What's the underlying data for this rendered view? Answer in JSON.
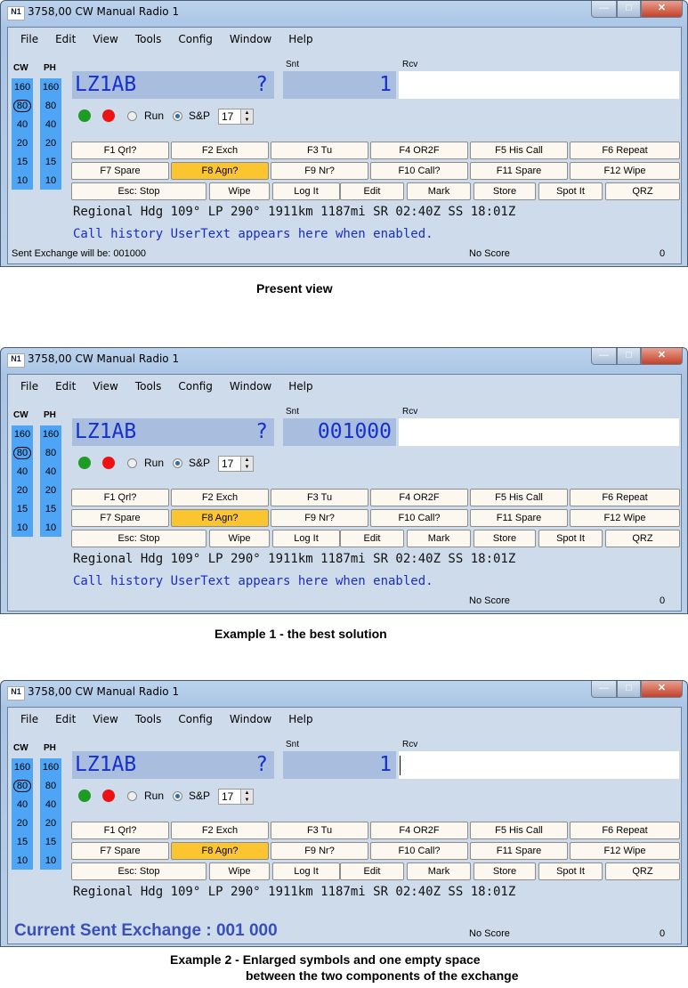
{
  "windows": [
    {
      "title": "3758,00 CW Manual Radio 1",
      "call": "LZ1AB",
      "call_flag": "?",
      "snt": "1",
      "rcv": "",
      "status": "Sent Exchange will be: 001000",
      "history": "Call history UserText appears here when enabled.",
      "big_status": "",
      "cursor": false,
      "caption": "Present view"
    },
    {
      "title": "3758,00 CW Manual Radio 1",
      "call": "LZ1AB",
      "call_flag": "?",
      "snt": "001000",
      "rcv": "",
      "status": "",
      "history": "Call history UserText appears here when enabled.",
      "big_status": "",
      "cursor": false,
      "caption": "Example 1 - the best solution"
    },
    {
      "title": "3758,00 CW Manual Radio 1",
      "call": "LZ1AB",
      "call_flag": "?",
      "snt": "1",
      "rcv": "",
      "status": "",
      "history": "",
      "big_status": "Current Sent Exchange :  001 000",
      "cursor": true,
      "caption": "Example 2 - Enlarged symbols and one empty space",
      "caption2": "between the two components of the exchange"
    }
  ],
  "common": {
    "logo": "N1MM",
    "controls": {
      "minimize": "—",
      "maximize": "□",
      "close": "✕"
    },
    "menu": [
      "File",
      "Edit",
      "View",
      "Tools",
      "Config",
      "Window",
      "Help"
    ],
    "band_headers": [
      "CW",
      "PH"
    ],
    "bands": [
      "160",
      "80",
      "40",
      "20",
      "15",
      "10"
    ],
    "selected_band": "80",
    "snt_label": "Snt",
    "rcv_label": "Rcv",
    "indicator_colors": {
      "green": "#1e9b22",
      "red": "#ee1111"
    },
    "run_label": "Run",
    "sp_label": "S&P",
    "mode": "S&P",
    "spin_value": "17",
    "fkeys_row1": [
      "F1 Qrl?",
      "F2 Exch",
      "F3 Tu",
      "F4 OR2F",
      "F5 His Call",
      "F6 Repeat"
    ],
    "fkeys_row2": [
      "F7 Spare",
      "F8 Agn?",
      "F9 Nr?",
      "F10 Call?",
      "F11 Spare",
      "F12 Wipe"
    ],
    "highlighted_key": "F8 Agn?",
    "actions": [
      "Esc: Stop",
      "Wipe",
      "Log It",
      "Edit",
      "Mark",
      "Store",
      "Spot It",
      "QRZ"
    ],
    "info": "Regional Hdg 109° LP 290° 1911km 1187mi SR 02:40Z SS 18:01Z",
    "score": "No Score",
    "count": "0"
  }
}
